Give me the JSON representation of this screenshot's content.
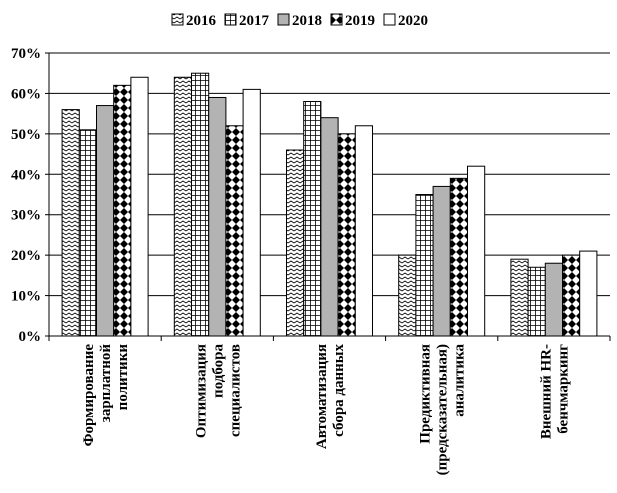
{
  "chart_data": {
    "type": "bar",
    "title": "",
    "xlabel": "",
    "ylabel": "",
    "ylim": [
      0,
      70
    ],
    "y_tick_step": 10,
    "y_tick_format": "percent",
    "grid": "horizontal",
    "legend_position": "top",
    "categories": [
      [
        "Формирование",
        "зарплатной",
        "политики"
      ],
      [
        "Оптимизация",
        "подбора",
        "специалистов"
      ],
      [
        "Автоматизация",
        "сбора данных"
      ],
      [
        "Предиктивная",
        "(предсказательная)",
        "аналитика"
      ],
      [
        "Внешний HR-",
        "бенчмаркинг"
      ]
    ],
    "series": [
      {
        "name": "2016",
        "pattern": "zigzag",
        "values": [
          56,
          64,
          46,
          20,
          19
        ]
      },
      {
        "name": "2017",
        "pattern": "grid",
        "values": [
          51,
          65,
          58,
          35,
          17
        ]
      },
      {
        "name": "2018",
        "pattern": "gray",
        "values": [
          57,
          59,
          54,
          37,
          18
        ]
      },
      {
        "name": "2019",
        "pattern": "diamond",
        "values": [
          62,
          52,
          50,
          39,
          20
        ]
      },
      {
        "name": "2020",
        "pattern": "white",
        "values": [
          64,
          61,
          52,
          42,
          21
        ]
      }
    ],
    "colors": {
      "gray_fill": "#b3b3b3",
      "line": "#000000",
      "background": "#ffffff"
    }
  }
}
